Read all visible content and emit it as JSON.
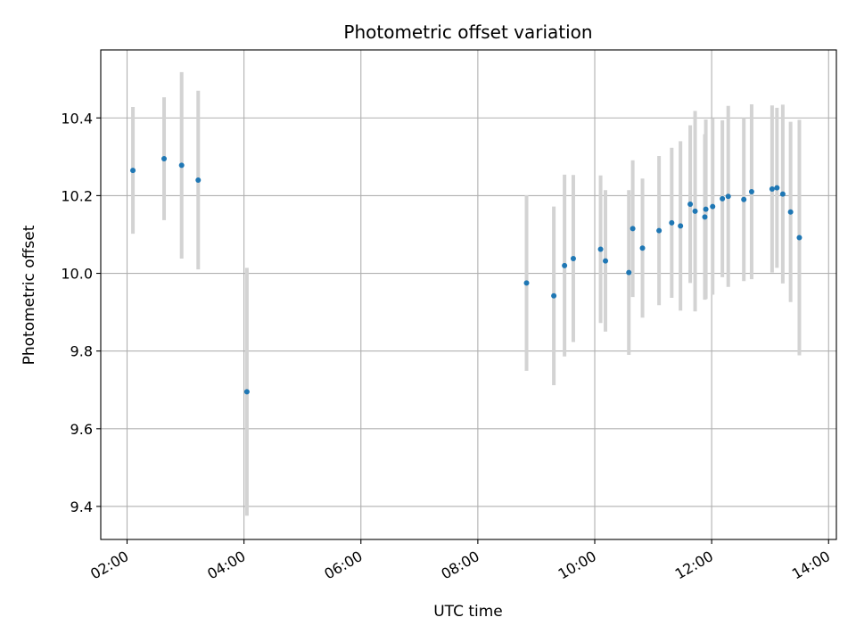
{
  "chart_data": {
    "type": "scatter",
    "title": "Photometric offset variation",
    "xlabel": "UTC time",
    "ylabel": "Photometric offset",
    "x_unit": "UTC time (HH:MM)",
    "xlim": [
      "01:33",
      "14:08"
    ],
    "ylim": [
      9.315,
      10.575
    ],
    "x_ticks": [
      "02:00",
      "04:00",
      "06:00",
      "08:00",
      "10:00",
      "12:00",
      "14:00"
    ],
    "y_ticks": [
      9.4,
      9.6,
      9.8,
      10.0,
      10.2,
      10.4
    ],
    "y_tick_labels": [
      "9.4",
      "9.6",
      "9.8",
      "10.0",
      "10.2",
      "10.4"
    ],
    "grid": true,
    "x_tick_label_rotation": "30",
    "points": [
      {
        "x": "02:06",
        "y": 10.265,
        "err": 0.163
      },
      {
        "x": "02:38",
        "y": 10.295,
        "err": 0.158
      },
      {
        "x": "02:56",
        "y": 10.278,
        "err": 0.24
      },
      {
        "x": "03:13",
        "y": 10.24,
        "err": 0.23
      },
      {
        "x": "04:03",
        "y": 9.695,
        "err": 0.319
      },
      {
        "x": "08:50",
        "y": 9.975,
        "err": 0.226
      },
      {
        "x": "09:18",
        "y": 9.942,
        "err": 0.23
      },
      {
        "x": "09:29",
        "y": 10.02,
        "err": 0.234
      },
      {
        "x": "09:38",
        "y": 10.038,
        "err": 0.215
      },
      {
        "x": "10:06",
        "y": 10.062,
        "err": 0.19
      },
      {
        "x": "10:11",
        "y": 10.032,
        "err": 0.182
      },
      {
        "x": "10:35",
        "y": 10.002,
        "err": 0.212
      },
      {
        "x": "10:39",
        "y": 10.115,
        "err": 0.176
      },
      {
        "x": "10:49",
        "y": 10.065,
        "err": 0.179
      },
      {
        "x": "11:06",
        "y": 10.11,
        "err": 0.192
      },
      {
        "x": "11:19",
        "y": 10.13,
        "err": 0.193
      },
      {
        "x": "11:28",
        "y": 10.122,
        "err": 0.218
      },
      {
        "x": "11:38",
        "y": 10.178,
        "err": 0.203
      },
      {
        "x": "11:43",
        "y": 10.16,
        "err": 0.258
      },
      {
        "x": "11:53",
        "y": 10.145,
        "err": 0.213
      },
      {
        "x": "11:54",
        "y": 10.165,
        "err": 0.231
      },
      {
        "x": "12:01",
        "y": 10.172,
        "err": 0.227
      },
      {
        "x": "12:11",
        "y": 10.192,
        "err": 0.202
      },
      {
        "x": "12:17",
        "y": 10.198,
        "err": 0.233
      },
      {
        "x": "12:33",
        "y": 10.19,
        "err": 0.21
      },
      {
        "x": "12:41",
        "y": 10.21,
        "err": 0.225
      },
      {
        "x": "13:02",
        "y": 10.217,
        "err": 0.215
      },
      {
        "x": "13:07",
        "y": 10.22,
        "err": 0.206
      },
      {
        "x": "13:13",
        "y": 10.204,
        "err": 0.23
      },
      {
        "x": "13:21",
        "y": 10.158,
        "err": 0.232
      },
      {
        "x": "13:30",
        "y": 10.092,
        "err": 0.303
      }
    ],
    "colors": {
      "point": "#1f77b4",
      "errorbar": "#d3d3d3",
      "grid": "#b0b0b0",
      "axes": "#000000"
    }
  }
}
